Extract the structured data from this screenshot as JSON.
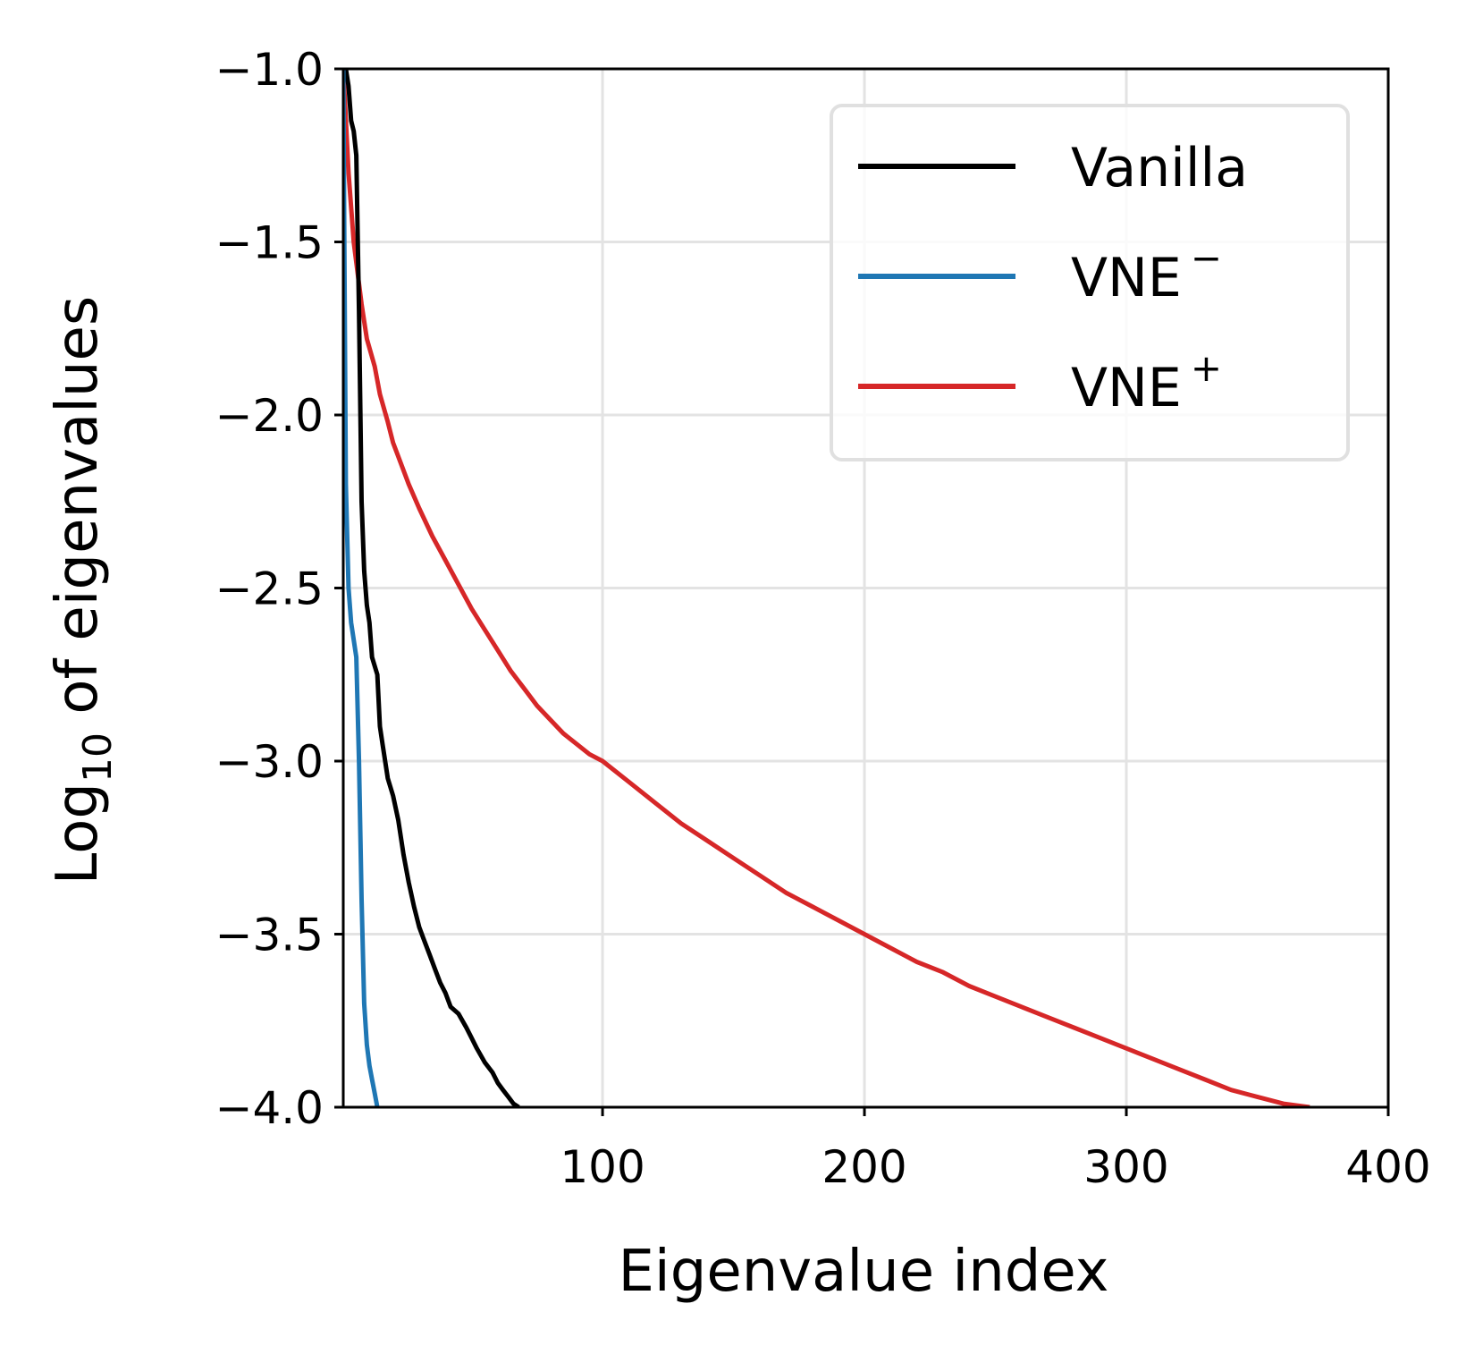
{
  "chart_data": {
    "type": "line",
    "title": "",
    "xlabel": "Eigenvalue index",
    "ylabel": {
      "base": "Log",
      "subscript": "10",
      "rest": " of eigenvalues"
    },
    "xlim": [
      1,
      400
    ],
    "ylim": [
      -4.0,
      -1.0
    ],
    "xticks": [
      100,
      200,
      300,
      400
    ],
    "xtick_labels": [
      "100",
      "200",
      "300",
      "400"
    ],
    "yticks": [
      -1.0,
      -1.5,
      -2.0,
      -2.5,
      -3.0,
      -3.5,
      -4.0
    ],
    "ytick_labels": [
      "−1.0",
      "−1.5",
      "−2.0",
      "−2.5",
      "−3.0",
      "−3.5",
      "−4.0"
    ],
    "grid": true,
    "legend_position": "top-right",
    "series": [
      {
        "name": "Vanilla",
        "name_main": "Vanilla",
        "name_sup": "",
        "color": "#000000",
        "x": [
          2,
          3,
          4,
          5,
          6,
          7,
          8,
          9,
          10,
          11,
          12,
          14,
          15,
          16,
          18,
          20,
          22,
          24,
          26,
          28,
          30,
          32,
          34,
          36,
          38,
          40,
          42,
          45,
          48,
          50,
          52,
          55,
          58,
          60,
          62,
          64,
          66,
          68
        ],
        "y": [
          -1.0,
          -1.05,
          -1.15,
          -1.18,
          -1.25,
          -1.7,
          -2.25,
          -2.45,
          -2.55,
          -2.6,
          -2.7,
          -2.75,
          -2.9,
          -2.95,
          -3.05,
          -3.1,
          -3.17,
          -3.27,
          -3.35,
          -3.42,
          -3.48,
          -3.52,
          -3.56,
          -3.6,
          -3.64,
          -3.67,
          -3.71,
          -3.73,
          -3.77,
          -3.8,
          -3.83,
          -3.87,
          -3.9,
          -3.93,
          -3.95,
          -3.97,
          -3.99,
          -4.0
        ]
      },
      {
        "name": "VNE⁻",
        "name_main": "VNE",
        "name_sup": "−",
        "color": "#1f77b4",
        "x": [
          1,
          2,
          3,
          4,
          5,
          6,
          7,
          8,
          9,
          10,
          11,
          12,
          13,
          14
        ],
        "y": [
          -1.0,
          -2.2,
          -2.5,
          -2.6,
          -2.65,
          -2.7,
          -3.0,
          -3.4,
          -3.7,
          -3.82,
          -3.88,
          -3.92,
          -3.96,
          -4.0
        ]
      },
      {
        "name": "VNE⁺",
        "name_main": "VNE",
        "name_sup": "+",
        "color": "#d62728",
        "x": [
          1,
          3,
          5,
          8,
          10,
          13,
          15,
          18,
          20,
          23,
          26,
          30,
          35,
          40,
          45,
          50,
          55,
          60,
          65,
          70,
          75,
          80,
          85,
          90,
          95,
          100,
          110,
          120,
          130,
          140,
          150,
          160,
          170,
          180,
          190,
          200,
          210,
          220,
          230,
          240,
          250,
          260,
          270,
          280,
          290,
          300,
          310,
          320,
          330,
          340,
          350,
          360,
          370
        ],
        "y": [
          -1.0,
          -1.3,
          -1.5,
          -1.68,
          -1.78,
          -1.86,
          -1.94,
          -2.02,
          -2.08,
          -2.14,
          -2.2,
          -2.27,
          -2.35,
          -2.42,
          -2.49,
          -2.56,
          -2.62,
          -2.68,
          -2.74,
          -2.79,
          -2.84,
          -2.88,
          -2.92,
          -2.95,
          -2.98,
          -3.0,
          -3.06,
          -3.12,
          -3.18,
          -3.23,
          -3.28,
          -3.33,
          -3.38,
          -3.42,
          -3.46,
          -3.5,
          -3.54,
          -3.58,
          -3.61,
          -3.65,
          -3.68,
          -3.71,
          -3.74,
          -3.77,
          -3.8,
          -3.83,
          -3.86,
          -3.89,
          -3.92,
          -3.95,
          -3.97,
          -3.99,
          -4.0
        ]
      }
    ]
  }
}
